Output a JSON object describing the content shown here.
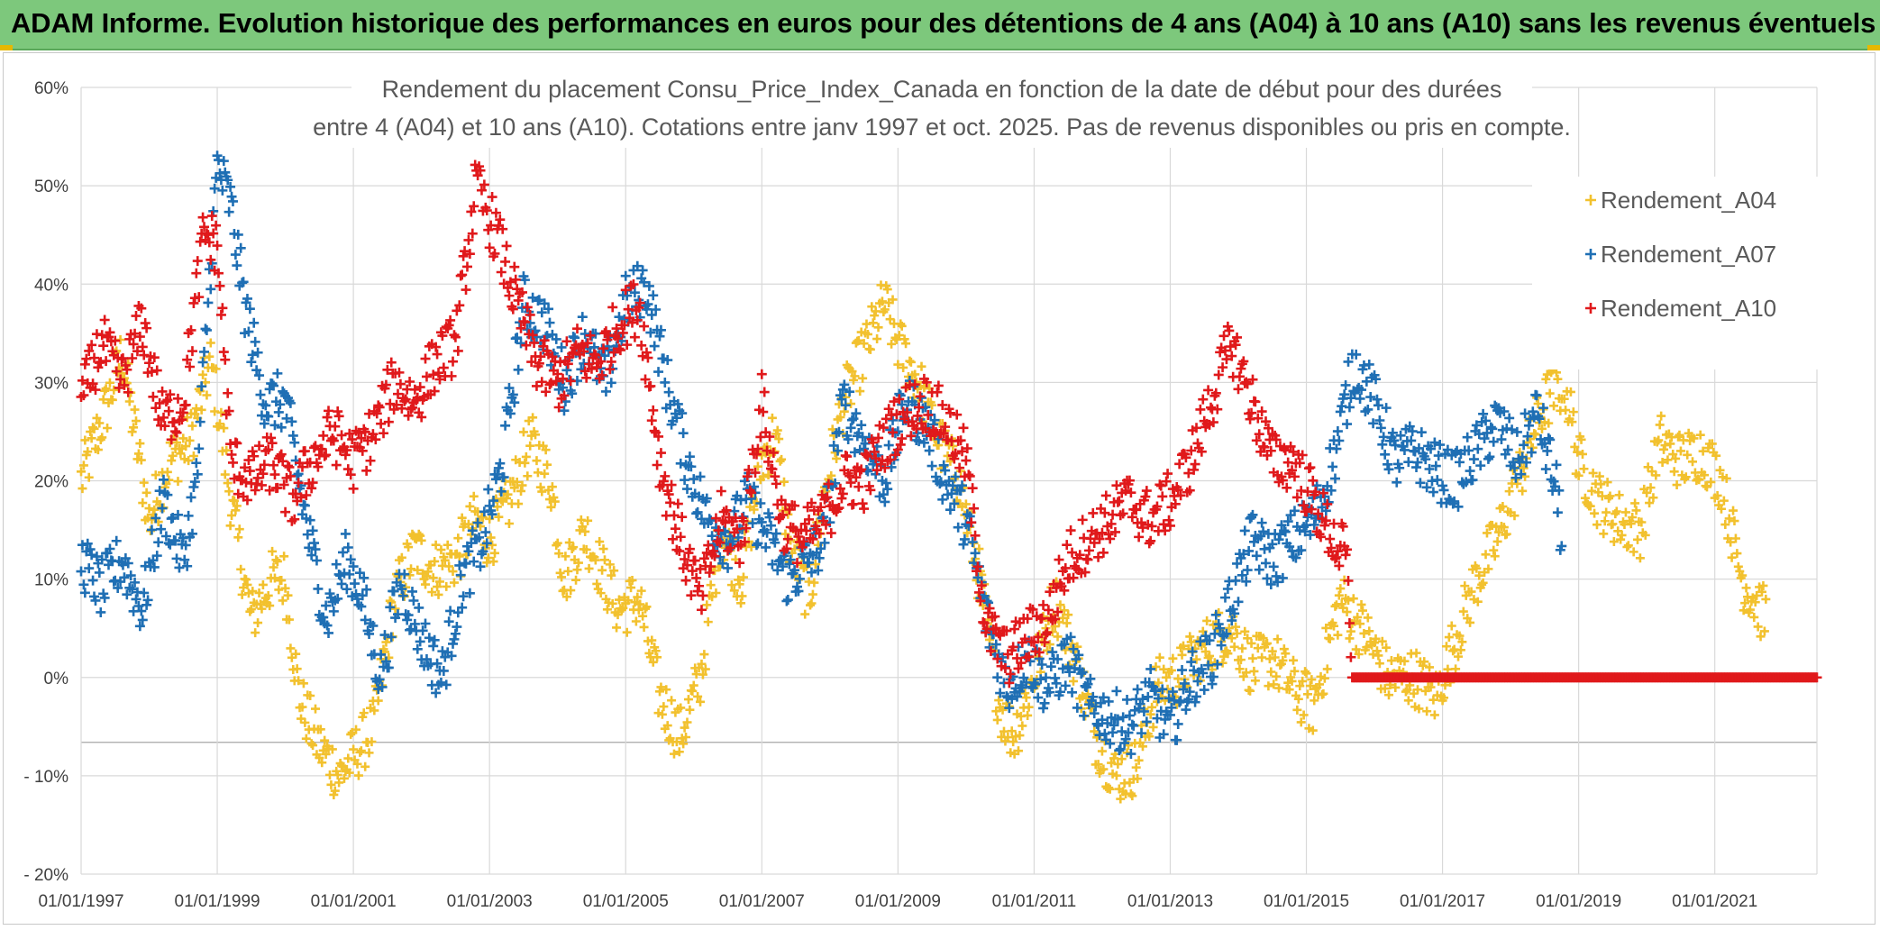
{
  "banner": {
    "title": "ADAM Informe. Evolution historique des performances en euros pour des détentions de 4 ans (A04) à 10 ans (A10) sans les revenus éventuels"
  },
  "chart_data": {
    "type": "scatter",
    "title_line1": "Rendement du placement Consu_Price_Index_Canada en fonction de la date de début pour des durées",
    "title_line2": "entre 4 (A04) et 10 ans (A10). Cotations entre janv 1997 et oct. 2025. Pas de revenus disponibles ou pris en compte.",
    "x_range": [
      1997.0,
      2022.5
    ],
    "x_ticks": [
      {
        "value": 1997,
        "label": "01/01/1997"
      },
      {
        "value": 1999,
        "label": "01/01/1999"
      },
      {
        "value": 2001,
        "label": "01/01/2001"
      },
      {
        "value": 2003,
        "label": "01/01/2003"
      },
      {
        "value": 2005,
        "label": "01/01/2005"
      },
      {
        "value": 2007,
        "label": "01/01/2007"
      },
      {
        "value": 2009,
        "label": "01/01/2009"
      },
      {
        "value": 2011,
        "label": "01/01/2011"
      },
      {
        "value": 2013,
        "label": "01/01/2013"
      },
      {
        "value": 2015,
        "label": "01/01/2015"
      },
      {
        "value": 2017,
        "label": "01/01/2017"
      },
      {
        "value": 2019,
        "label": "01/01/2019"
      },
      {
        "value": 2021,
        "label": "01/01/2021"
      }
    ],
    "ylim": [
      -20,
      60
    ],
    "y_ticks": [
      {
        "value": 60,
        "label": "60%"
      },
      {
        "value": 50,
        "label": "50%"
      },
      {
        "value": 40,
        "label": "40%"
      },
      {
        "value": 30,
        "label": "30%"
      },
      {
        "value": 20,
        "label": "20%"
      },
      {
        "value": 10,
        "label": "10%"
      },
      {
        "value": 0,
        "label": "0%"
      },
      {
        "value": -10,
        "label": "- 10%"
      },
      {
        "value": -20,
        "label": "- 20%"
      }
    ],
    "grid": true,
    "legend_position": "top-right",
    "series": [
      {
        "name": "Rendement_A04",
        "color": "#f2c12e",
        "x_start": 1997.0,
        "x_end": 2021.75,
        "keypoints": [
          [
            1997.0,
            20
          ],
          [
            1997.4,
            28
          ],
          [
            1997.6,
            33
          ],
          [
            1998.0,
            16
          ],
          [
            1998.3,
            22
          ],
          [
            1998.6,
            24
          ],
          [
            1998.9,
            32
          ],
          [
            1999.0,
            28
          ],
          [
            1999.2,
            18
          ],
          [
            1999.5,
            6
          ],
          [
            1999.8,
            10
          ],
          [
            2000.0,
            10
          ],
          [
            2000.2,
            -2
          ],
          [
            2000.5,
            -7
          ],
          [
            2000.8,
            -10
          ],
          [
            2001.0,
            -8
          ],
          [
            2001.3,
            -5
          ],
          [
            2001.6,
            8
          ],
          [
            2001.9,
            13
          ],
          [
            2002.2,
            11
          ],
          [
            2002.5,
            12
          ],
          [
            2002.8,
            16
          ],
          [
            2003.0,
            14
          ],
          [
            2003.3,
            18
          ],
          [
            2003.6,
            24
          ],
          [
            2003.9,
            20
          ],
          [
            2004.1,
            10
          ],
          [
            2004.4,
            15
          ],
          [
            2004.7,
            10
          ],
          [
            2004.9,
            7
          ],
          [
            2005.2,
            8
          ],
          [
            2005.5,
            -2
          ],
          [
            2005.8,
            -6
          ],
          [
            2006.1,
            0
          ],
          [
            2006.4,
            15
          ],
          [
            2006.7,
            10
          ],
          [
            2007.0,
            22
          ],
          [
            2007.2,
            25
          ],
          [
            2007.4,
            14
          ],
          [
            2007.7,
            8
          ],
          [
            2007.9,
            18
          ],
          [
            2008.2,
            28
          ],
          [
            2008.5,
            33
          ],
          [
            2008.8,
            38
          ],
          [
            2009.0,
            34
          ],
          [
            2009.3,
            30
          ],
          [
            2009.6,
            24
          ],
          [
            2009.9,
            20
          ],
          [
            2010.2,
            10
          ],
          [
            2010.5,
            -3
          ],
          [
            2010.7,
            -6
          ],
          [
            2011.0,
            0
          ],
          [
            2011.3,
            8
          ],
          [
            2011.6,
            2
          ],
          [
            2011.9,
            -6
          ],
          [
            2012.2,
            -10
          ],
          [
            2012.5,
            -9
          ],
          [
            2012.8,
            -1
          ],
          [
            2013.1,
            0
          ],
          [
            2013.5,
            3
          ],
          [
            2013.9,
            5
          ],
          [
            2014.2,
            1
          ],
          [
            2014.5,
            2
          ],
          [
            2014.8,
            -1
          ],
          [
            2015.1,
            -3
          ],
          [
            2015.5,
            8
          ],
          [
            2015.9,
            4
          ],
          [
            2016.2,
            0
          ],
          [
            2016.6,
            0
          ],
          [
            2016.9,
            -2
          ],
          [
            2017.2,
            4
          ],
          [
            2017.5,
            10
          ],
          [
            2017.8,
            14
          ],
          [
            2018.1,
            20
          ],
          [
            2018.5,
            28
          ],
          [
            2018.8,
            30
          ],
          [
            2019.0,
            22
          ],
          [
            2019.3,
            18
          ],
          [
            2019.6,
            16
          ],
          [
            2019.9,
            15
          ],
          [
            2020.2,
            24
          ],
          [
            2020.5,
            22
          ],
          [
            2020.8,
            23
          ],
          [
            2021.1,
            20
          ],
          [
            2021.4,
            10
          ],
          [
            2021.75,
            6
          ]
        ]
      },
      {
        "name": "Rendement_A07",
        "color": "#1f6fb4",
        "x_start": 1997.0,
        "x_end": 2018.75,
        "keypoints": [
          [
            1997.0,
            12
          ],
          [
            1997.3,
            9
          ],
          [
            1997.6,
            12
          ],
          [
            1997.9,
            7
          ],
          [
            1998.2,
            18
          ],
          [
            1998.5,
            12
          ],
          [
            1998.7,
            20
          ],
          [
            1998.9,
            42
          ],
          [
            1999.0,
            52
          ],
          [
            1999.2,
            48
          ],
          [
            1999.4,
            38
          ],
          [
            1999.7,
            28
          ],
          [
            2000.0,
            28
          ],
          [
            2000.3,
            16
          ],
          [
            2000.6,
            6
          ],
          [
            2000.9,
            12
          ],
          [
            2001.1,
            9
          ],
          [
            2001.4,
            0
          ],
          [
            2001.7,
            10
          ],
          [
            2002.0,
            4
          ],
          [
            2002.3,
            0
          ],
          [
            2002.6,
            10
          ],
          [
            2002.9,
            14
          ],
          [
            2003.2,
            22
          ],
          [
            2003.5,
            38
          ],
          [
            2003.8,
            36
          ],
          [
            2004.1,
            30
          ],
          [
            2004.4,
            35
          ],
          [
            2004.7,
            30
          ],
          [
            2005.0,
            38
          ],
          [
            2005.3,
            40
          ],
          [
            2005.6,
            30
          ],
          [
            2005.9,
            22
          ],
          [
            2006.2,
            16
          ],
          [
            2006.5,
            14
          ],
          [
            2006.8,
            18
          ],
          [
            2007.1,
            14
          ],
          [
            2007.4,
            10
          ],
          [
            2007.7,
            12
          ],
          [
            2007.9,
            14
          ],
          [
            2008.2,
            28
          ],
          [
            2008.5,
            24
          ],
          [
            2008.8,
            20
          ],
          [
            2009.1,
            28
          ],
          [
            2009.4,
            26
          ],
          [
            2009.7,
            20
          ],
          [
            2010.0,
            16
          ],
          [
            2010.3,
            6
          ],
          [
            2010.6,
            -1
          ],
          [
            2010.9,
            2
          ],
          [
            2011.2,
            -1
          ],
          [
            2011.5,
            2
          ],
          [
            2011.8,
            -3
          ],
          [
            2012.1,
            -4
          ],
          [
            2012.4,
            -5
          ],
          [
            2012.7,
            -2
          ],
          [
            2013.0,
            -5
          ],
          [
            2013.3,
            0
          ],
          [
            2013.6,
            2
          ],
          [
            2013.9,
            8
          ],
          [
            2014.2,
            14
          ],
          [
            2014.5,
            12
          ],
          [
            2014.8,
            14
          ],
          [
            2015.1,
            16
          ],
          [
            2015.4,
            22
          ],
          [
            2015.7,
            32
          ],
          [
            2016.0,
            28
          ],
          [
            2016.3,
            22
          ],
          [
            2016.6,
            23
          ],
          [
            2016.9,
            21
          ],
          [
            2017.2,
            20
          ],
          [
            2017.5,
            23
          ],
          [
            2017.8,
            26
          ],
          [
            2018.1,
            22
          ],
          [
            2018.4,
            27
          ],
          [
            2018.7,
            18
          ],
          [
            2018.75,
            14
          ]
        ]
      },
      {
        "name": "Rendement_A10",
        "color": "#e0191b",
        "x_start": 1997.0,
        "x_end": 2022.5,
        "keypoints": [
          [
            1997.0,
            28
          ],
          [
            1997.3,
            34
          ],
          [
            1997.6,
            30
          ],
          [
            1997.9,
            36
          ],
          [
            1998.2,
            26
          ],
          [
            1998.5,
            28
          ],
          [
            1998.8,
            45
          ],
          [
            1999.0,
            44
          ],
          [
            1999.2,
            22
          ],
          [
            1999.5,
            20
          ],
          [
            1999.8,
            22
          ],
          [
            2000.1,
            18
          ],
          [
            2000.4,
            22
          ],
          [
            2000.7,
            25
          ],
          [
            2001.0,
            22
          ],
          [
            2001.3,
            25
          ],
          [
            2001.6,
            30
          ],
          [
            2001.9,
            28
          ],
          [
            2002.2,
            32
          ],
          [
            2002.5,
            34
          ],
          [
            2002.8,
            50
          ],
          [
            2003.1,
            45
          ],
          [
            2003.4,
            38
          ],
          [
            2003.7,
            32
          ],
          [
            2004.0,
            30
          ],
          [
            2004.3,
            33
          ],
          [
            2004.6,
            32
          ],
          [
            2004.9,
            36
          ],
          [
            2005.2,
            38
          ],
          [
            2005.5,
            22
          ],
          [
            2005.8,
            14
          ],
          [
            2006.1,
            8
          ],
          [
            2006.4,
            16
          ],
          [
            2006.7,
            14
          ],
          [
            2007.0,
            28
          ],
          [
            2007.3,
            16
          ],
          [
            2007.6,
            14
          ],
          [
            2007.9,
            16
          ],
          [
            2008.2,
            20
          ],
          [
            2008.5,
            20
          ],
          [
            2008.8,
            24
          ],
          [
            2009.1,
            27
          ],
          [
            2009.4,
            28
          ],
          [
            2009.7,
            26
          ],
          [
            2010.0,
            22
          ],
          [
            2010.3,
            5
          ],
          [
            2010.6,
            2
          ],
          [
            2010.9,
            4
          ],
          [
            2011.2,
            6
          ],
          [
            2011.5,
            12
          ],
          [
            2011.8,
            14
          ],
          [
            2012.1,
            16
          ],
          [
            2012.4,
            18
          ],
          [
            2012.7,
            16
          ],
          [
            2013.0,
            18
          ],
          [
            2013.3,
            22
          ],
          [
            2013.6,
            28
          ],
          [
            2013.9,
            34
          ],
          [
            2014.2,
            28
          ],
          [
            2014.5,
            22
          ],
          [
            2014.8,
            22
          ],
          [
            2015.1,
            18
          ],
          [
            2015.4,
            14
          ],
          [
            2015.6,
            12
          ],
          [
            2015.65,
            0
          ],
          [
            2022.5,
            0
          ]
        ]
      }
    ]
  }
}
